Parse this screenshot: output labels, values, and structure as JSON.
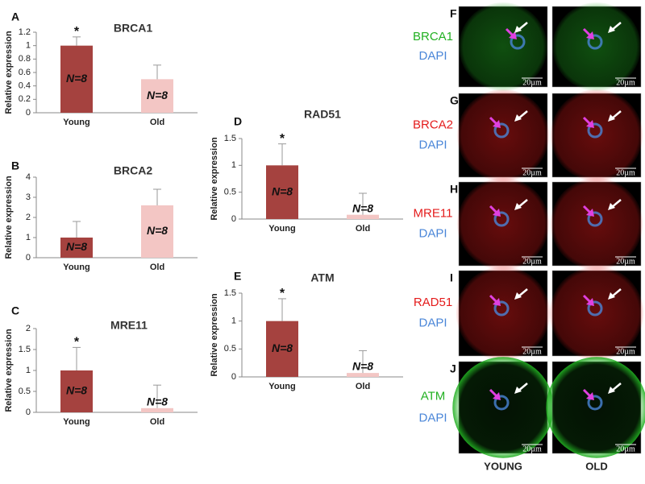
{
  "chart_data": [
    {
      "type": "bar",
      "panel": "A",
      "title": "BRCA1",
      "y_label": "Relative expression",
      "categories": [
        "Young",
        "Old"
      ],
      "values": [
        1,
        0.5
      ],
      "errors": [
        0.13,
        0.21
      ],
      "colors": [
        "#a5423f",
        "#f3c6c4"
      ],
      "bar_labels": [
        "N=8",
        "N=8"
      ],
      "annotations": [
        {
          "text": "*",
          "category": "Young"
        }
      ],
      "ylim": [
        0,
        1.2
      ],
      "yticks": [
        0,
        0.2,
        0.4,
        0.6,
        0.8,
        1,
        1.2
      ]
    },
    {
      "type": "bar",
      "panel": "B",
      "title": "BRCA2",
      "y_label": "Relative expression",
      "categories": [
        "Young",
        "Old"
      ],
      "values": [
        1,
        2.6
      ],
      "errors": [
        0.8,
        0.8
      ],
      "colors": [
        "#a5423f",
        "#f3c6c4"
      ],
      "bar_labels": [
        "N=8",
        "N=8"
      ],
      "annotations": [],
      "ylim": [
        0,
        4
      ],
      "yticks": [
        0,
        1,
        2,
        3,
        4
      ]
    },
    {
      "type": "bar",
      "panel": "C",
      "title": "MRE11",
      "y_label": "Relative expression",
      "categories": [
        "Young",
        "Old"
      ],
      "values": [
        1,
        0.1
      ],
      "errors": [
        0.55,
        0.55
      ],
      "colors": [
        "#a5423f",
        "#f3c6c4"
      ],
      "bar_labels": [
        "N=8",
        "N=8"
      ],
      "annotations": [
        {
          "text": "*",
          "category": "Young"
        }
      ],
      "ylim": [
        0,
        2
      ],
      "yticks": [
        0,
        0.5,
        1,
        1.5,
        2
      ]
    },
    {
      "type": "bar",
      "panel": "D",
      "title": "RAD51",
      "y_label": "Relative expression",
      "categories": [
        "Young",
        "Old"
      ],
      "values": [
        1,
        0.08
      ],
      "errors": [
        0.4,
        0.4
      ],
      "colors": [
        "#a5423f",
        "#f3c6c4"
      ],
      "bar_labels": [
        "N=8",
        "N=8"
      ],
      "annotations": [
        {
          "text": "*",
          "category": "Young"
        }
      ],
      "ylim": [
        0,
        1.5
      ],
      "yticks": [
        0,
        0.5,
        1,
        1.5
      ]
    },
    {
      "type": "bar",
      "panel": "E",
      "title": "ATM",
      "y_label": "Relative expression",
      "categories": [
        "Young",
        "Old"
      ],
      "values": [
        1,
        0.07
      ],
      "errors": [
        0.4,
        0.4
      ],
      "colors": [
        "#a5423f",
        "#f3c6c4"
      ],
      "bar_labels": [
        "N=8",
        "N=8"
      ],
      "annotations": [
        {
          "text": "*",
          "category": "Young"
        }
      ],
      "ylim": [
        0,
        1.5
      ],
      "yticks": [
        0,
        0.5,
        1,
        1.5
      ]
    }
  ],
  "images": {
    "rows": [
      {
        "panel": "F",
        "stain": "BRCA1",
        "stain_color": "#22b022",
        "counterstain": "DAPI",
        "counterstain_color": "#4a86d8"
      },
      {
        "panel": "G",
        "stain": "BRCA2",
        "stain_color": "#e41b1b",
        "counterstain": "DAPI",
        "counterstain_color": "#4a86d8"
      },
      {
        "panel": "H",
        "stain": "MRE11",
        "stain_color": "#e41b1b",
        "counterstain": "DAPI",
        "counterstain_color": "#4a86d8"
      },
      {
        "panel": "I",
        "stain": "RAD51",
        "stain_color": "#e41b1b",
        "counterstain": "DAPI",
        "counterstain_color": "#4a86d8"
      },
      {
        "panel": "J",
        "stain": "ATM",
        "stain_color": "#22b022",
        "counterstain": "DAPI",
        "counterstain_color": "#4a86d8"
      }
    ],
    "scale_bar": "20µm",
    "columns": [
      "YOUNG",
      "OLD"
    ]
  }
}
